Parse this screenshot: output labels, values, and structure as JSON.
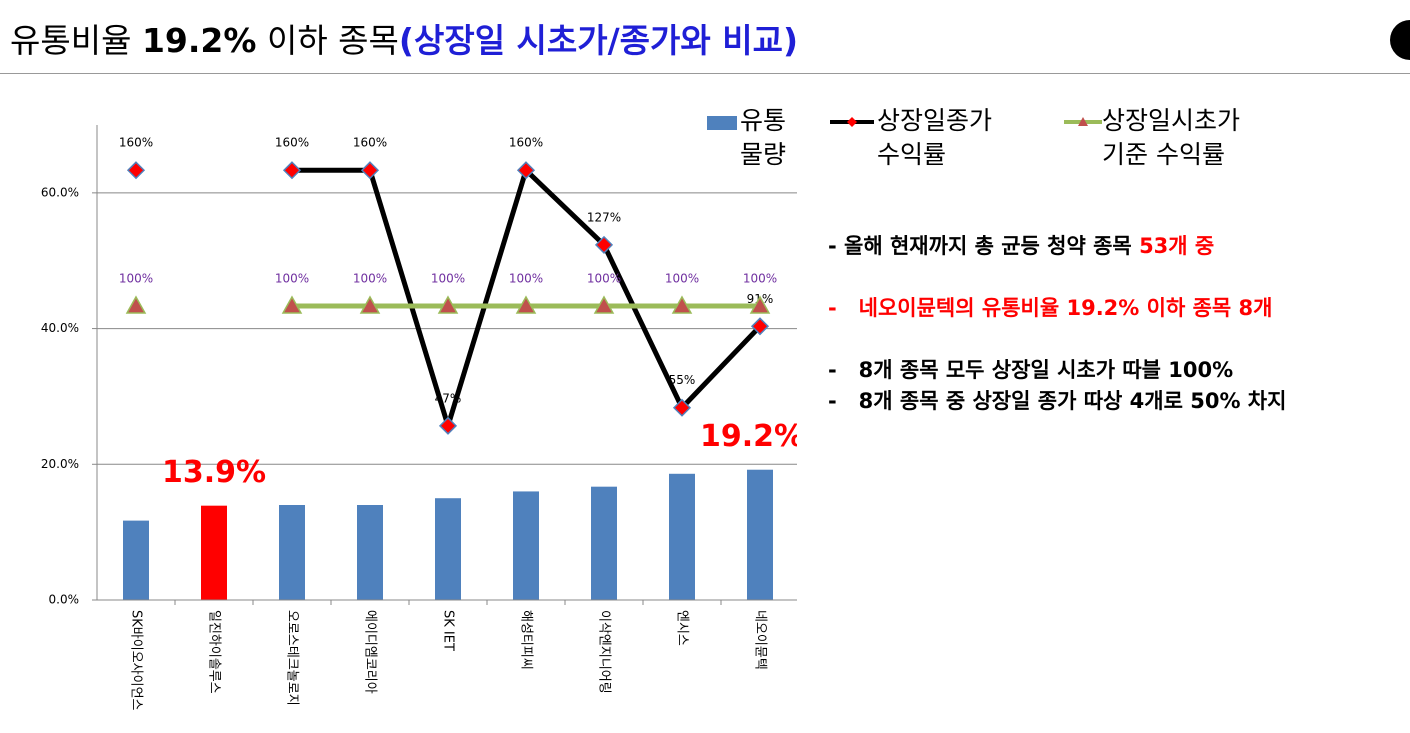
{
  "slide_title": [
    "유통비율",
    "19.2%",
    "이하 종목",
    "(상장일 시초가/종가와 비교)"
  ],
  "notes": [
    [
      "올해 현재까지 총 균등 청약 종목",
      "53개 중"
    ],
    [
      "네오이뮨텍의 유통비율 19.2% 이하 종목 8개"
    ],
    [
      "8개 종목 모두 상장일 시초가 따블 100%"
    ],
    [
      "8개 종목 중 상장일 종가 따상 4개로 50% 차지"
    ]
  ],
  "chart_data": {
    "type": "bar",
    "categories": [
      "SK바이오사이언스",
      "일진하이솔루스",
      "오로스테크놀로지",
      "에이디엠코리아",
      "SK IET",
      "해성티피씨",
      "이삭엔지니어링",
      "엔시스",
      "네오이뮨텍"
    ],
    "ylim": [
      0,
      70
    ],
    "yticks": [
      {
        "value": 0,
        "label": "0.0%"
      },
      {
        "value": 20,
        "label": "20.0%"
      },
      {
        "value": 40,
        "label": "40.0%"
      },
      {
        "value": 60,
        "label": "60.0%"
      }
    ],
    "y2lim": [
      -30,
      180
    ],
    "grid": true,
    "series": [
      {
        "name": "유통물량",
        "color": "#4f81bd",
        "colors": [
          "#4f81bd",
          "#ff0000",
          "#4f81bd",
          "#4f81bd",
          "#4f81bd",
          "#4f81bd",
          "#4f81bd",
          "#4f81bd",
          "#4f81bd"
        ],
        "values": [
          11.7,
          13.9,
          14.0,
          14.0,
          15.0,
          16.0,
          16.7,
          18.6,
          19.2
        ],
        "value_labels": [
          null,
          "13.9%",
          null,
          null,
          null,
          null,
          null,
          null,
          "19.2%"
        ]
      },
      {
        "name": "상장일종가 수익률",
        "type": "line",
        "axis": "y2",
        "color": "#000000",
        "marker_color": "#ff0000",
        "values": [
          160,
          null,
          160,
          160,
          47,
          160,
          127,
          55,
          91
        ],
        "value_labels": [
          "160%",
          null,
          "160%",
          "160%",
          "47%",
          "160%",
          "127%",
          "55%",
          "91%"
        ]
      },
      {
        "name": "상장일시초가 기준 수익률",
        "type": "line",
        "axis": "y2",
        "color": "#9bbb59",
        "marker_color": "#c0504d",
        "values": [
          100,
          null,
          100,
          100,
          100,
          100,
          100,
          100,
          100
        ],
        "value_labels": [
          "100%",
          null,
          "100%",
          "100%",
          "100%",
          "100%",
          "100%",
          "100%",
          "100%"
        ]
      }
    ]
  }
}
